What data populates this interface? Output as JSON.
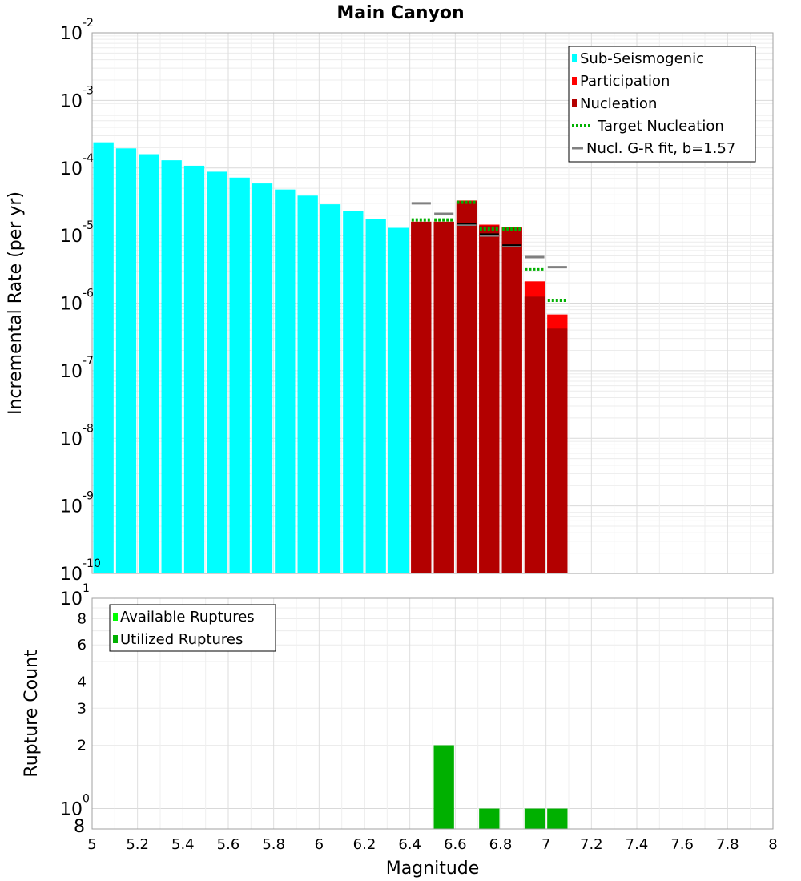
{
  "chart_data": [
    {
      "type": "bar",
      "title": "Main Canyon",
      "xlabel": "Magnitude",
      "ylabel": "Incremental Rate (per yr)",
      "yscale": "log",
      "xlim": [
        5,
        8
      ],
      "ylim": [
        1e-10,
        0.01
      ],
      "grid": true,
      "y_tick_labels": [
        {
          "exp": -2,
          "base": "10",
          "sup": "-2"
        },
        {
          "exp": -3,
          "base": "10",
          "sup": "-3"
        },
        {
          "exp": -4,
          "base": "10",
          "sup": "-4"
        },
        {
          "exp": -5,
          "base": "10",
          "sup": "-5"
        },
        {
          "exp": -6,
          "base": "10",
          "sup": "-6"
        },
        {
          "exp": -7,
          "base": "10",
          "sup": "-7"
        },
        {
          "exp": -8,
          "base": "10",
          "sup": "-8"
        },
        {
          "exp": -9,
          "base": "10",
          "sup": "-9"
        },
        {
          "exp": -10,
          "base": "10",
          "sup": "-10"
        }
      ],
      "legend": {
        "position": "top-right",
        "entries": [
          {
            "label": "Sub-Seismogenic",
            "color": "#00ffff",
            "style": "box"
          },
          {
            "label": "Participation",
            "color": "#ff0000",
            "style": "box"
          },
          {
            "label": "Nucleation",
            "color": "#b30000",
            "style": "box"
          },
          {
            "label": "Target Nucleation",
            "color": "#00b000",
            "style": "dotted"
          },
          {
            "label": "Nucl. G-R fit, b=1.57",
            "color": "#808080",
            "style": "line"
          }
        ]
      },
      "series": [
        {
          "name": "Sub-Seismogenic",
          "color": "#00ffff",
          "x": [
            5.05,
            5.15,
            5.25,
            5.35,
            5.45,
            5.55,
            5.65,
            5.75,
            5.85,
            5.95,
            6.05,
            6.15,
            6.25,
            6.35
          ],
          "values": [
            0.00024,
            0.000195,
            0.00016,
            0.00013,
            0.000108,
            8.8e-05,
            7.2e-05,
            5.9e-05,
            4.8e-05,
            3.9e-05,
            2.9e-05,
            2.3e-05,
            1.75e-05,
            1.3e-05
          ]
        },
        {
          "name": "Participation",
          "color": "#ff0000",
          "x": [
            6.45,
            6.55,
            6.65,
            6.75,
            6.85,
            6.95,
            7.05
          ],
          "values": [
            1.6e-05,
            1.6e-05,
            3.3e-05,
            1.45e-05,
            1.35e-05,
            2.1e-06,
            6.8e-07
          ]
        },
        {
          "name": "Nucleation",
          "color": "#b30000",
          "x": [
            6.45,
            6.55,
            6.65,
            6.75,
            6.85,
            6.95,
            7.05
          ],
          "values": [
            1.6e-05,
            1.6e-05,
            3.2e-05,
            1.4e-05,
            1.3e-05,
            1.25e-06,
            4.2e-07
          ]
        },
        {
          "name": "Target Nucleation",
          "color": "#00b000",
          "x": [
            6.45,
            6.55,
            6.65,
            6.75,
            6.85,
            6.95,
            7.05
          ],
          "values": [
            1.7e-05,
            1.7e-05,
            3.1e-05,
            1.25e-05,
            1.25e-05,
            3.2e-06,
            1.1e-06
          ]
        },
        {
          "name": "Nucl. G-R fit, b=1.57",
          "color": "#808080",
          "x": [
            6.45,
            6.55,
            6.65,
            6.75,
            6.85,
            6.95,
            7.05
          ],
          "values": [
            3e-05,
            2.1e-05,
            1.45e-05,
            1e-05,
            7e-06,
            4.8e-06,
            3.4e-06
          ]
        },
        {
          "name": "Nucleation G-R marker",
          "color": "#000000",
          "x": [
            6.65,
            6.75,
            6.85
          ],
          "values": [
            1.5e-05,
            1.05e-05,
            7.2e-06
          ]
        }
      ]
    },
    {
      "type": "bar",
      "title": "",
      "xlabel": "Magnitude",
      "ylabel": "Rupture Count",
      "yscale": "log",
      "xlim": [
        5,
        8
      ],
      "ylim": [
        0.8,
        10
      ],
      "grid": true,
      "x_ticks": [
        "5",
        "5.2",
        "5.4",
        "5.6",
        "5.8",
        "6",
        "6.2",
        "6.4",
        "6.6",
        "6.8",
        "7",
        "7.2",
        "7.4",
        "7.6",
        "7.8",
        "8"
      ],
      "y_minor_ticks": [
        "8",
        "6",
        "4",
        "3",
        "2",
        "8"
      ],
      "y_tick_labels": [
        {
          "base": "10",
          "sup": "1"
        },
        {
          "base": "10",
          "sup": "0"
        }
      ],
      "legend": {
        "position": "top-left",
        "entries": [
          {
            "label": "Available Ruptures",
            "color": "#00ff00",
            "style": "box"
          },
          {
            "label": "Utilized Ruptures",
            "color": "#00b000",
            "style": "box"
          }
        ]
      },
      "series": [
        {
          "name": "Utilized Ruptures",
          "color": "#00b000",
          "x": [
            6.55,
            6.75,
            6.95,
            7.05
          ],
          "values": [
            2,
            1,
            1,
            1
          ]
        }
      ]
    }
  ]
}
